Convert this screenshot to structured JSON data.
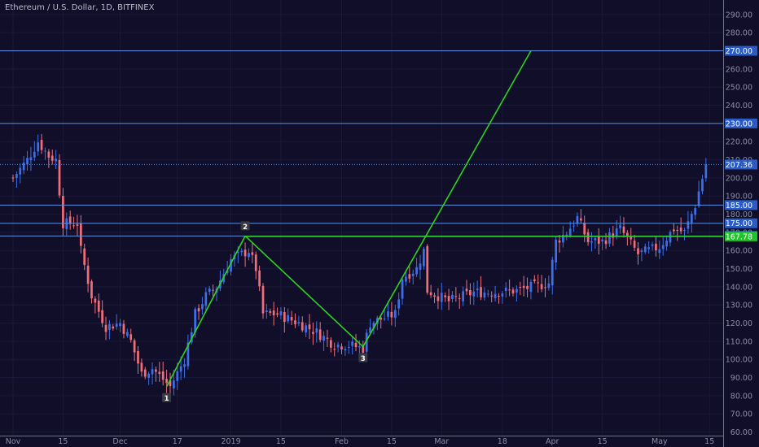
{
  "header": {
    "title": "Ethereum / U.S. Dollar, 1D, BITFINEX"
  },
  "colors": {
    "background": "#110e2a",
    "grid": "#1a1838",
    "up_candle": "#3d6fe8",
    "down_candle": "#ef6e78",
    "level_line": "#5a8fe0",
    "pattern_line": "#2fd21f",
    "axis_text": "#8d8fa3",
    "price_tag": "#2b5bc6",
    "green_tag": "#1fc42b"
  },
  "chart_data": {
    "type": "candlestick",
    "title": "Ethereum / U.S. Dollar, 1D, BITFINEX",
    "y_axis": {
      "side": "right",
      "range": [
        58,
        298
      ],
      "ticks": [
        60,
        70,
        80,
        90,
        100,
        110,
        120,
        130,
        140,
        150,
        160,
        170,
        180,
        190,
        200,
        210,
        220,
        230,
        240,
        250,
        260,
        270,
        280,
        290
      ],
      "tick_labels": [
        "60.00",
        "70.00",
        "80.00",
        "90.00",
        "100.00",
        "110.00",
        "120.00",
        "130.00",
        "140.00",
        "150.00",
        "160.00",
        "170.00",
        "180.00",
        "190.00",
        "200.00",
        "210.00",
        "220.00",
        "230.00",
        "240.00",
        "250.00",
        "260.00",
        "270.00",
        "280.00",
        "290.00"
      ]
    },
    "x_axis": {
      "start_date": "2018-11-01",
      "end_date": "2019-05-17",
      "ticks": [
        {
          "label": "Nov",
          "date": "2018-11-01"
        },
        {
          "label": "15",
          "date": "2018-11-15"
        },
        {
          "label": "Dec",
          "date": "2018-12-01"
        },
        {
          "label": "17",
          "date": "2018-12-17"
        },
        {
          "label": "2019",
          "date": "2019-01-01"
        },
        {
          "label": "15",
          "date": "2019-01-15"
        },
        {
          "label": "Feb",
          "date": "2019-02-01"
        },
        {
          "label": "15",
          "date": "2019-02-15"
        },
        {
          "label": "Mar",
          "date": "2019-03-01"
        },
        {
          "label": "18",
          "date": "2019-03-18"
        },
        {
          "label": "Apr",
          "date": "2019-04-01"
        },
        {
          "label": "15",
          "date": "2019-04-15"
        },
        {
          "label": "May",
          "date": "2019-05-01"
        },
        {
          "label": "15",
          "date": "2019-05-15"
        }
      ]
    },
    "key_points": [
      {
        "date": "2018-11-01",
        "close": 200
      },
      {
        "date": "2018-11-05",
        "close": 210
      },
      {
        "date": "2018-11-08",
        "close": 220
      },
      {
        "date": "2018-11-11",
        "close": 212
      },
      {
        "date": "2018-11-13",
        "close": 210
      },
      {
        "date": "2018-11-15",
        "close": 175
      },
      {
        "date": "2018-11-19",
        "close": 175
      },
      {
        "date": "2018-11-20",
        "close": 160
      },
      {
        "date": "2018-11-23",
        "close": 135
      },
      {
        "date": "2018-11-27",
        "close": 118
      },
      {
        "date": "2018-12-01",
        "close": 120
      },
      {
        "date": "2018-12-04",
        "close": 110
      },
      {
        "date": "2018-12-07",
        "close": 92
      },
      {
        "date": "2018-12-10",
        "close": 95
      },
      {
        "date": "2018-12-15",
        "close": 85
      },
      {
        "date": "2018-12-19",
        "close": 100
      },
      {
        "date": "2018-12-22",
        "close": 125
      },
      {
        "date": "2018-12-25",
        "close": 135
      },
      {
        "date": "2018-12-28",
        "close": 140
      },
      {
        "date": "2019-01-01",
        "close": 155
      },
      {
        "date": "2019-01-06",
        "close": 160
      },
      {
        "date": "2019-01-08",
        "close": 150
      },
      {
        "date": "2019-01-10",
        "close": 125
      },
      {
        "date": "2019-01-14",
        "close": 125
      },
      {
        "date": "2019-01-20",
        "close": 120
      },
      {
        "date": "2019-01-25",
        "close": 115
      },
      {
        "date": "2019-01-30",
        "close": 108
      },
      {
        "date": "2019-02-03",
        "close": 108
      },
      {
        "date": "2019-02-07",
        "close": 106
      },
      {
        "date": "2019-02-09",
        "close": 120
      },
      {
        "date": "2019-02-13",
        "close": 123
      },
      {
        "date": "2019-02-16",
        "close": 125
      },
      {
        "date": "2019-02-18",
        "close": 145
      },
      {
        "date": "2019-02-22",
        "close": 150
      },
      {
        "date": "2019-02-24",
        "close": 160
      },
      {
        "date": "2019-02-25",
        "close": 138
      },
      {
        "date": "2019-03-03",
        "close": 132
      },
      {
        "date": "2019-03-10",
        "close": 137
      },
      {
        "date": "2019-03-16",
        "close": 137
      },
      {
        "date": "2019-03-22",
        "close": 138
      },
      {
        "date": "2019-03-31",
        "close": 142
      },
      {
        "date": "2019-04-02",
        "close": 165
      },
      {
        "date": "2019-04-05",
        "close": 170
      },
      {
        "date": "2019-04-08",
        "close": 178
      },
      {
        "date": "2019-04-11",
        "close": 165
      },
      {
        "date": "2019-04-15",
        "close": 165
      },
      {
        "date": "2019-04-20",
        "close": 172
      },
      {
        "date": "2019-04-25",
        "close": 158
      },
      {
        "date": "2019-05-01",
        "close": 162
      },
      {
        "date": "2019-05-05",
        "close": 172
      },
      {
        "date": "2019-05-08",
        "close": 170
      },
      {
        "date": "2019-05-11",
        "close": 185
      },
      {
        "date": "2019-05-14",
        "close": 207.36
      }
    ],
    "horizontal_levels": [
      {
        "value": 270,
        "label": "270.00",
        "color": "#5a8fe0",
        "style": "solid"
      },
      {
        "value": 230,
        "label": "230.00",
        "color": "#5a8fe0",
        "style": "solid"
      },
      {
        "value": 185,
        "label": "185.00",
        "color": "#5a8fe0",
        "style": "solid"
      },
      {
        "value": 175,
        "label": "175.00",
        "color": "#5a8fe0",
        "style": "solid"
      },
      {
        "value": 168,
        "label": "168.00",
        "color": "#5a8fe0",
        "style": "solid"
      },
      {
        "value": 207.36,
        "label": "207.36",
        "color": "#5a8fe0",
        "style": "dotted"
      }
    ],
    "green_level": {
      "value": 167.78,
      "label": "167.78",
      "start_date": "2019-01-05"
    },
    "pattern_points": [
      {
        "label": "1",
        "date": "2018-12-14",
        "price": 85
      },
      {
        "label": "2",
        "date": "2019-01-05",
        "price": 168
      },
      {
        "label": "3",
        "date": "2019-02-07",
        "price": 107
      }
    ],
    "projection": {
      "from_date": "2019-02-07",
      "from_price": 107,
      "to_date": "2019-03-26",
      "to_price": 270
    },
    "grid": true,
    "legend": "none"
  }
}
